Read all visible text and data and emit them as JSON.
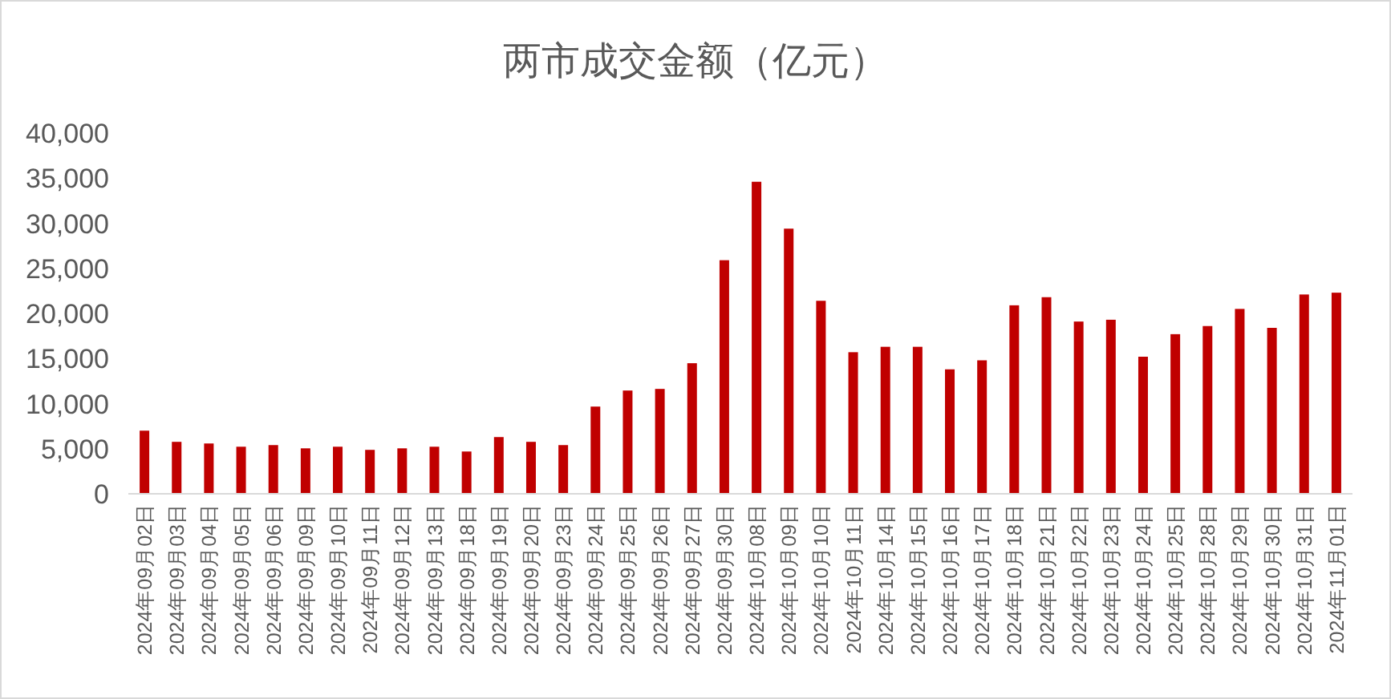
{
  "chart_data": {
    "type": "bar",
    "title": "两市成交金额（亿元）",
    "categories": [
      "2024年09月02日",
      "2024年09月03日",
      "2024年09月04日",
      "2024年09月05日",
      "2024年09月06日",
      "2024年09月09日",
      "2024年09月10日",
      "2024年09月11日",
      "2024年09月12日",
      "2024年09月13日",
      "2024年09月18日",
      "2024年09月19日",
      "2024年09月20日",
      "2024年09月23日",
      "2024年09月24日",
      "2024年09月25日",
      "2024年09月26日",
      "2024年09月27日",
      "2024年09月30日",
      "2024年10月08日",
      "2024年10月09日",
      "2024年10月10日",
      "2024年10月11日",
      "2024年10月14日",
      "2024年10月15日",
      "2024年10月16日",
      "2024年10月17日",
      "2024年10月18日",
      "2024年10月21日",
      "2024年10月22日",
      "2024年10月23日",
      "2024年10月24日",
      "2024年10月25日",
      "2024年10月28日",
      "2024年10月29日",
      "2024年10月30日",
      "2024年10月31日",
      "2024年11月01日"
    ],
    "values": [
      7000,
      5760,
      5580,
      5220,
      5400,
      5040,
      5220,
      4870,
      5040,
      5220,
      4690,
      6290,
      5760,
      5400,
      9670,
      11450,
      11630,
      14480,
      25900,
      34600,
      29400,
      21400,
      15700,
      16300,
      16300,
      13800,
      14800,
      20900,
      21800,
      19100,
      19300,
      15200,
      17700,
      18600,
      20500,
      18400,
      22100,
      22300
    ],
    "color": "#c00000",
    "ylim": [
      0,
      40000
    ],
    "yticks": [
      0,
      {
        "value": 5000,
        "label": "5,000"
      },
      {
        "value": 10000,
        "label": "10,000"
      },
      {
        "value": 15000,
        "label": "15,000"
      },
      {
        "value": 20000,
        "label": "20,000"
      },
      {
        "value": 25000,
        "label": "25,000"
      },
      {
        "value": 30000,
        "label": "30,000"
      },
      {
        "value": 35000,
        "label": "35,000"
      },
      {
        "value": 40000,
        "label": "40,000"
      }
    ]
  }
}
